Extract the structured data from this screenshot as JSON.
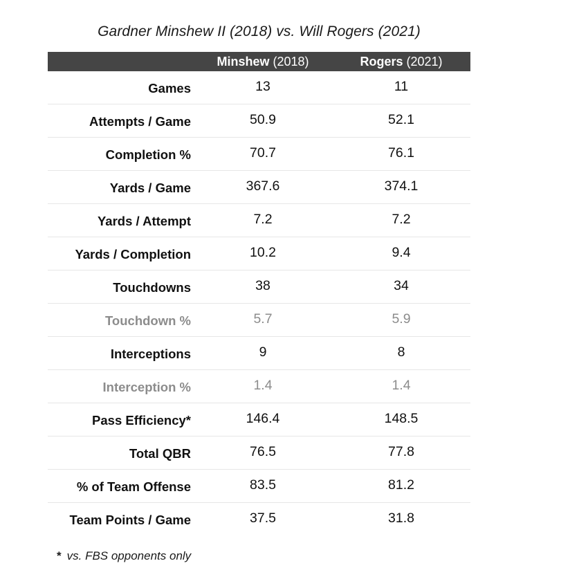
{
  "title": "Gardner Minshew II (2018) vs. Will Rogers (2021)",
  "columns": [
    {
      "name": "Minshew",
      "year": "(2018)"
    },
    {
      "name": "Rogers",
      "year": "(2021)"
    }
  ],
  "rows": [
    {
      "label": "Games",
      "a": "13",
      "b": "11",
      "muted": false
    },
    {
      "label": "Attempts / Game",
      "a": "50.9",
      "b": "52.1",
      "muted": false
    },
    {
      "label": "Completion %",
      "a": "70.7",
      "b": "76.1",
      "muted": false
    },
    {
      "label": "Yards / Game",
      "a": "367.6",
      "b": "374.1",
      "muted": false
    },
    {
      "label": "Yards / Attempt",
      "a": "7.2",
      "b": "7.2",
      "muted": false
    },
    {
      "label": "Yards / Completion",
      "a": "10.2",
      "b": "9.4",
      "muted": false
    },
    {
      "label": "Touchdowns",
      "a": "38",
      "b": "34",
      "muted": false
    },
    {
      "label": "Touchdown %",
      "a": "5.7",
      "b": "5.9",
      "muted": true
    },
    {
      "label": "Interceptions",
      "a": "9",
      "b": "8",
      "muted": false
    },
    {
      "label": "Interception %",
      "a": "1.4",
      "b": "1.4",
      "muted": true
    },
    {
      "label": "Pass Efficiency*",
      "a": "146.4",
      "b": "148.5",
      "muted": false
    },
    {
      "label": "Total QBR",
      "a": "76.5",
      "b": "77.8",
      "muted": false
    },
    {
      "label": "% of Team Offense",
      "a": "83.5",
      "b": "81.2",
      "muted": false
    },
    {
      "label": "Team Points / Game",
      "a": "37.5",
      "b": "31.8",
      "muted": false
    }
  ],
  "footnote": {
    "marker": "*",
    "text": "vs. FBS opponents only"
  },
  "colors": {
    "header_bg": "#454545",
    "header_text": "#ffffff",
    "muted_text": "#8c8c8c",
    "divider": "#e6e6e6"
  }
}
